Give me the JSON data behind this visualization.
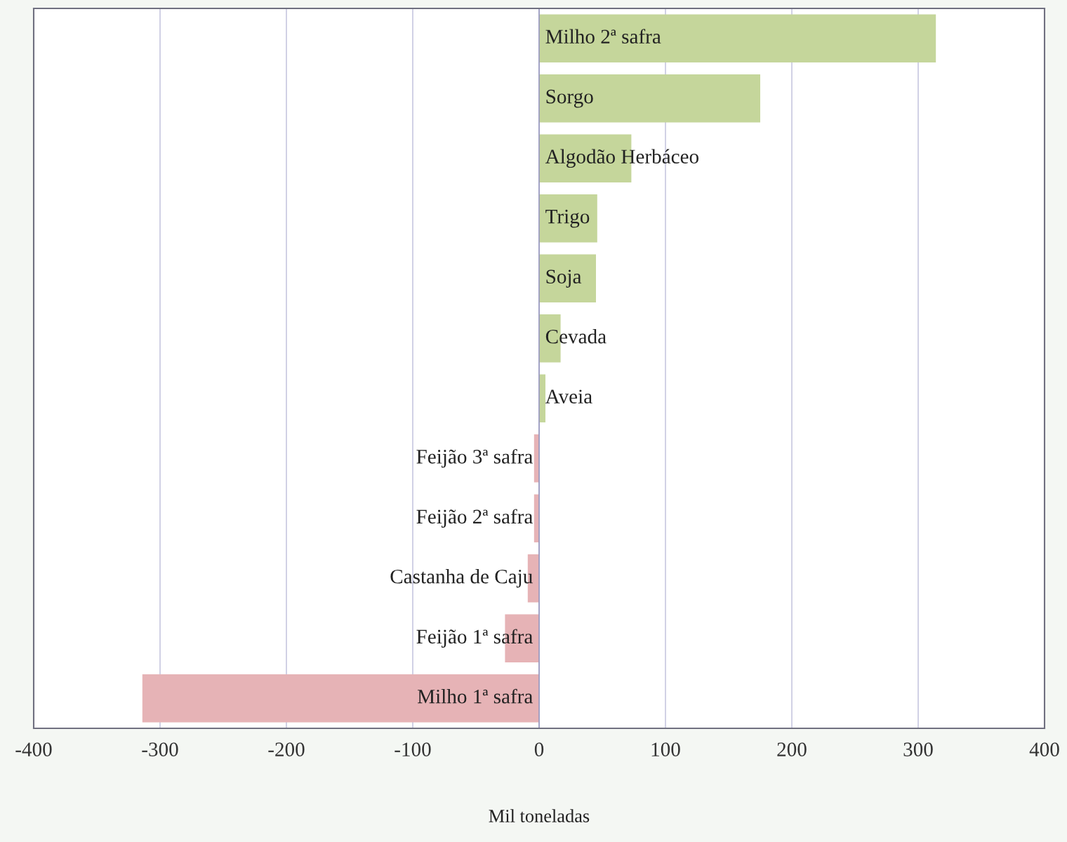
{
  "chart_data": {
    "type": "bar",
    "orientation": "horizontal",
    "xlabel": "Mil toneladas",
    "categories": [
      "Milho 2ª safra",
      "Sorgo",
      "Algodão Herbáceo",
      "Trigo",
      "Soja",
      "Cevada",
      "Aveia",
      "Feijão 3ª safra",
      "Feijão 2ª safra",
      "Castanha de Caju",
      "Feijão 1ª safra",
      "Milho 1ª safra"
    ],
    "values": [
      314,
      175,
      73,
      46,
      45,
      17,
      5,
      -4,
      -4,
      -9,
      -27,
      -314
    ],
    "colors": [
      "#c5d69b",
      "#c5d69b",
      "#c5d69b",
      "#c5d69b",
      "#c5d69b",
      "#c5d69b",
      "#c5d69b",
      "#e6b3b6",
      "#e6b3b6",
      "#e6b3b6",
      "#e6b3b6",
      "#e6b3b6"
    ],
    "xlim": [
      -400,
      400
    ],
    "xticks": [
      -400,
      -300,
      -200,
      -100,
      0,
      100,
      200,
      300,
      400
    ],
    "grid": "x"
  }
}
